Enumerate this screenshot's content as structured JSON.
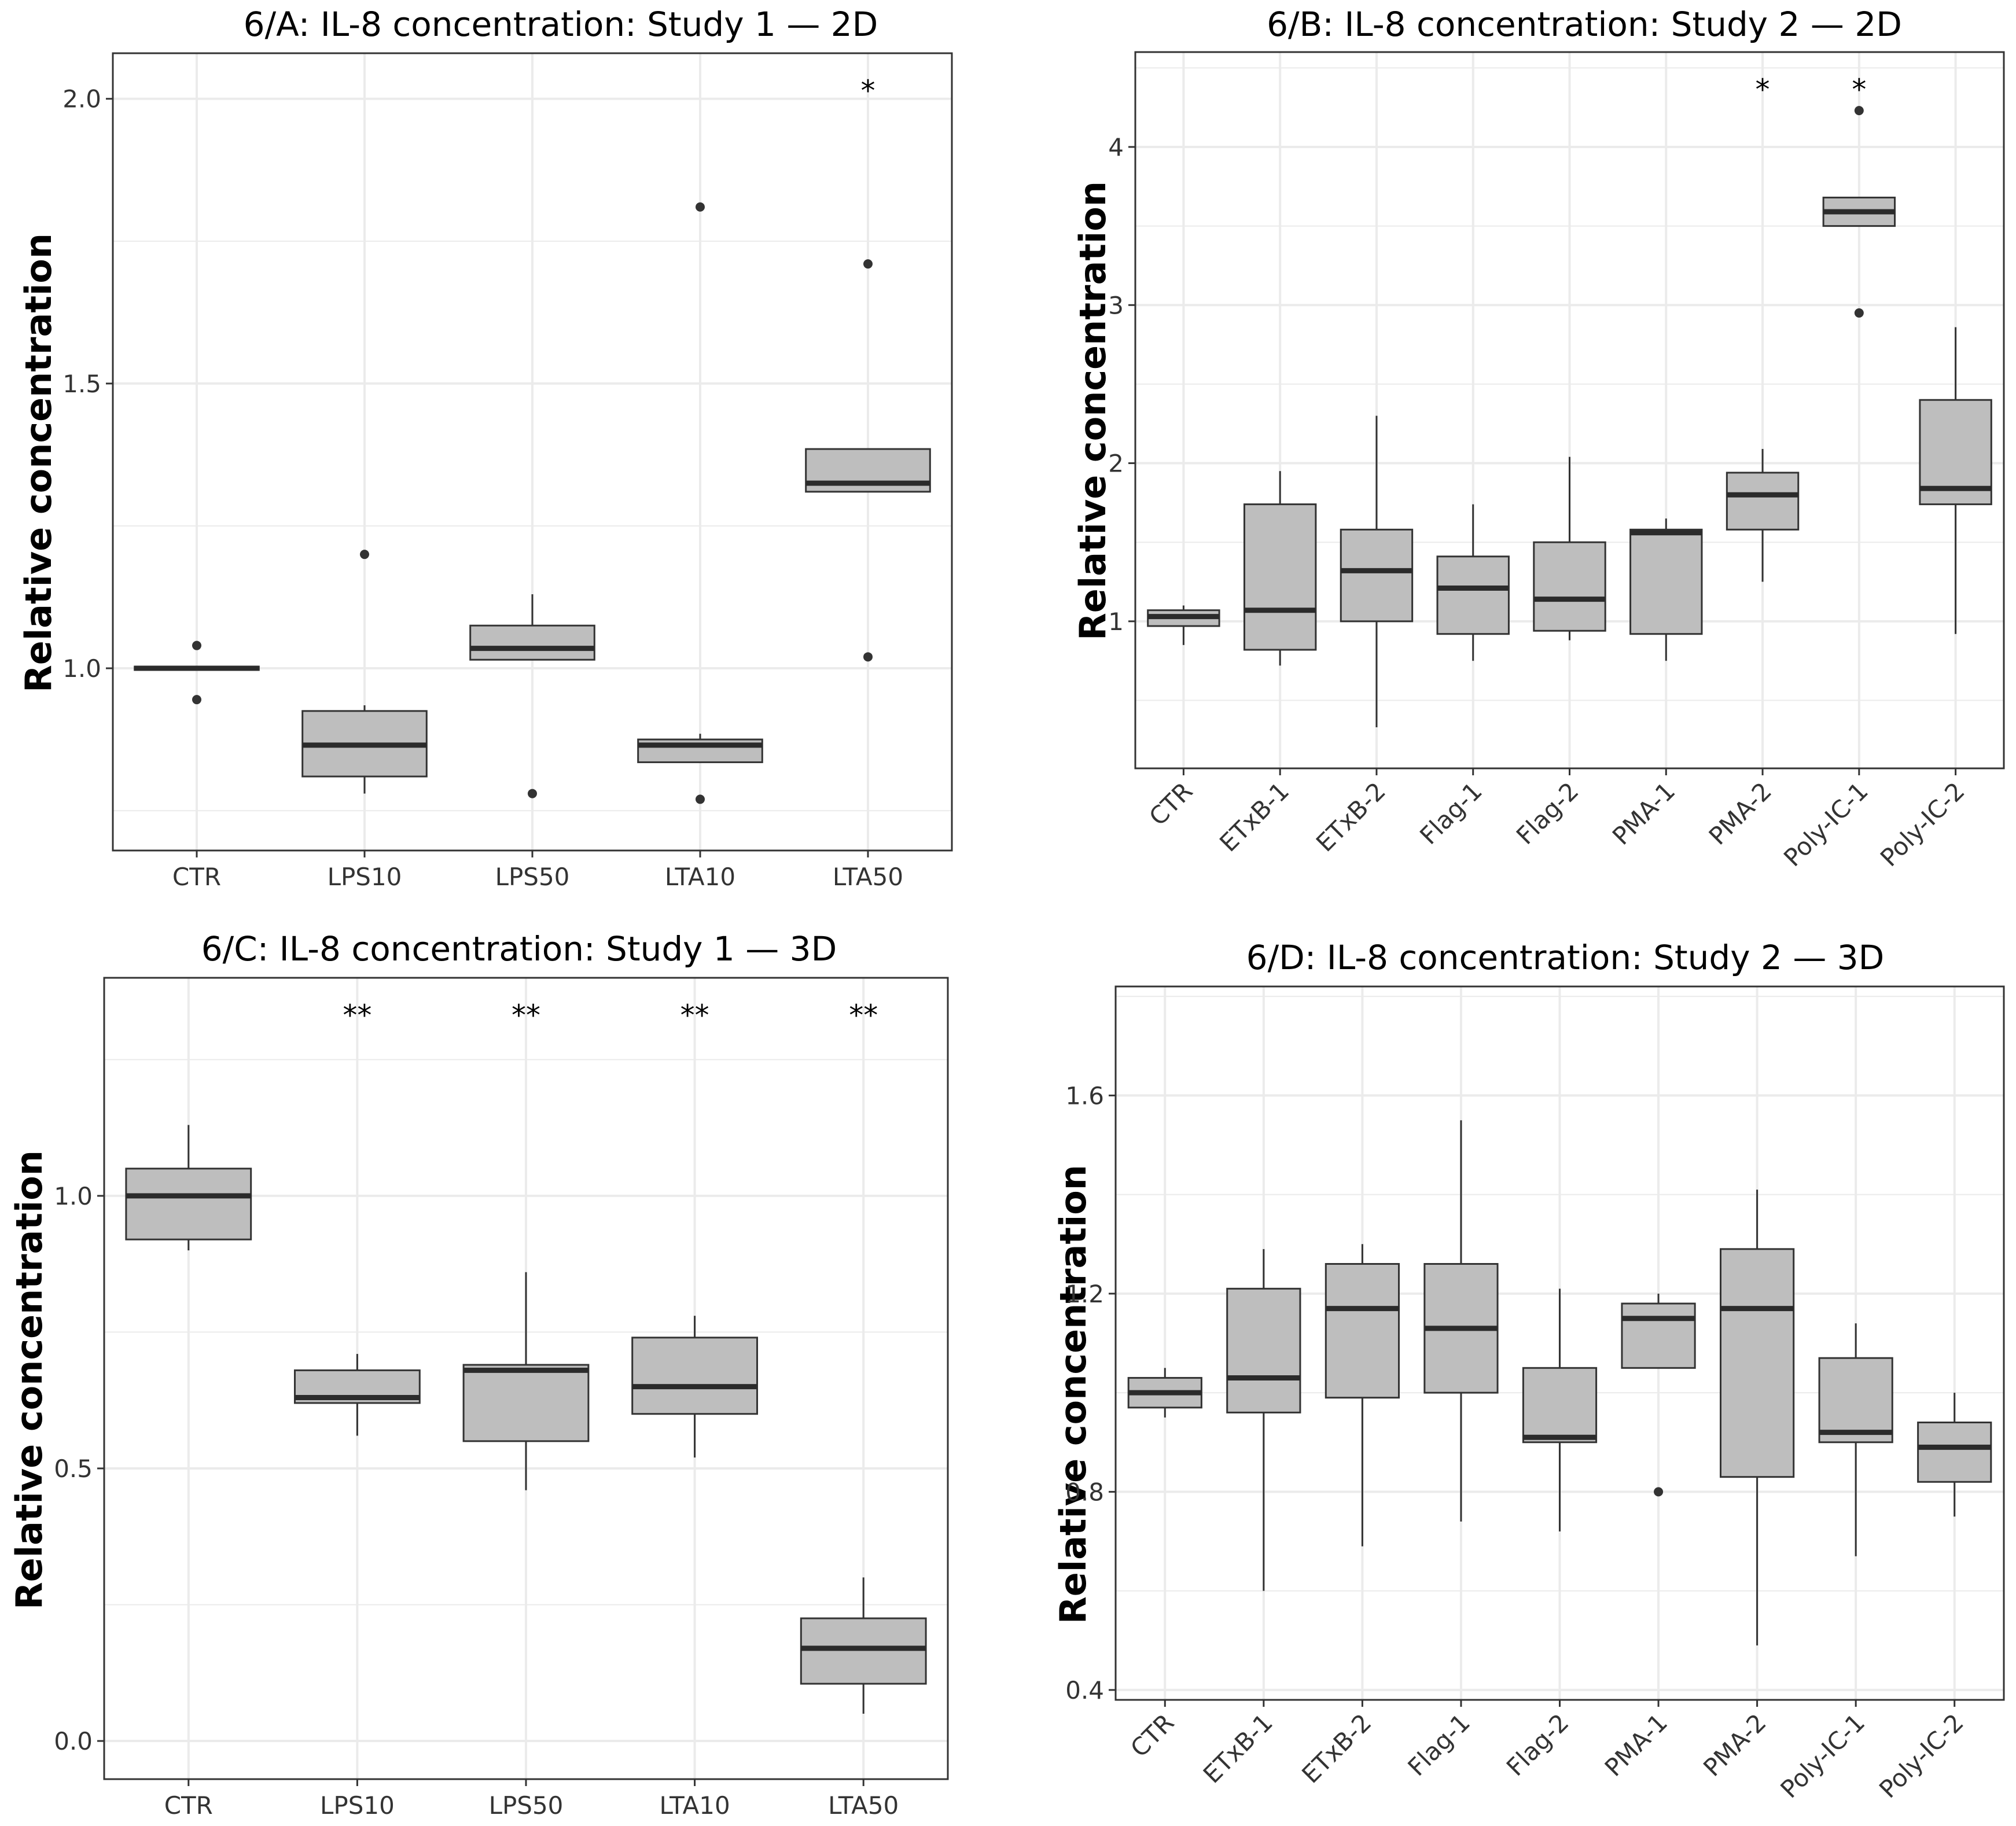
{
  "chart_data": [
    {
      "id": "A",
      "type": "boxplot",
      "title": "6/A: IL-8 concentration: Study 1 — 2D",
      "xlabel": "",
      "ylabel": "Relative concentration",
      "ylim": [
        0.68,
        2.08
      ],
      "yticks": [
        1.0,
        1.5,
        2.0
      ],
      "ytick_labels": [
        "1.0",
        "1.5",
        "2.0"
      ],
      "categories": [
        "CTR",
        "LPS10",
        "LPS50",
        "LTA10",
        "LTA50"
      ],
      "boxes": [
        {
          "lower": 1.0,
          "q1": 0.997,
          "median": 1.0,
          "q3": 1.003,
          "upper": 1.0,
          "outliers": [
            1.04,
            0.945
          ]
        },
        {
          "lower": 0.78,
          "q1": 0.81,
          "median": 0.865,
          "q3": 0.925,
          "upper": 0.935,
          "outliers": [
            1.2
          ]
        },
        {
          "lower": 1.02,
          "q1": 1.015,
          "median": 1.035,
          "q3": 1.075,
          "upper": 1.13,
          "outliers": [
            0.78
          ]
        },
        {
          "lower": 0.835,
          "q1": 0.835,
          "median": 0.865,
          "q3": 0.875,
          "upper": 0.885,
          "outliers": [
            1.81,
            0.77
          ]
        },
        {
          "lower": 1.31,
          "q1": 1.31,
          "median": 1.325,
          "q3": 1.385,
          "upper": 1.385,
          "outliers": [
            1.71,
            1.02
          ]
        }
      ],
      "significance": [
        "",
        "",
        "",
        "",
        "*"
      ]
    },
    {
      "id": "B",
      "type": "boxplot",
      "title": "6/B: IL-8 concentration: Study 2 — 2D",
      "xlabel": "",
      "ylabel": "Relative concentration",
      "ylim": [
        0.07,
        4.6
      ],
      "yticks": [
        1,
        2,
        3,
        4
      ],
      "ytick_labels": [
        "1",
        "2",
        "3",
        "4"
      ],
      "categories": [
        "CTR",
        "ETxB-1",
        "ETxB-2",
        "Flag-1",
        "Flag-2",
        "PMA-1",
        "PMA-2",
        "Poly-IC-1",
        "Poly-IC-2"
      ],
      "boxes": [
        {
          "lower": 0.85,
          "q1": 0.97,
          "median": 1.03,
          "q3": 1.07,
          "upper": 1.1,
          "outliers": []
        },
        {
          "lower": 0.72,
          "q1": 0.82,
          "median": 1.07,
          "q3": 1.74,
          "upper": 1.95,
          "outliers": []
        },
        {
          "lower": 0.33,
          "q1": 1.0,
          "median": 1.32,
          "q3": 1.58,
          "upper": 2.3,
          "outliers": []
        },
        {
          "lower": 0.75,
          "q1": 0.92,
          "median": 1.21,
          "q3": 1.41,
          "upper": 1.74,
          "outliers": []
        },
        {
          "lower": 0.88,
          "q1": 0.94,
          "median": 1.14,
          "q3": 1.5,
          "upper": 2.04,
          "outliers": []
        },
        {
          "lower": 0.75,
          "q1": 0.92,
          "median": 1.56,
          "q3": 1.58,
          "upper": 1.65,
          "outliers": []
        },
        {
          "lower": 1.25,
          "q1": 1.58,
          "median": 1.8,
          "q3": 1.94,
          "upper": 2.09,
          "outliers": []
        },
        {
          "lower": 3.5,
          "q1": 3.5,
          "median": 3.59,
          "q3": 3.68,
          "upper": 3.68,
          "outliers": [
            4.23,
            2.95
          ]
        },
        {
          "lower": 0.92,
          "q1": 1.74,
          "median": 1.84,
          "q3": 2.4,
          "upper": 2.86,
          "outliers": []
        }
      ],
      "significance": [
        "",
        "",
        "",
        "",
        "",
        "",
        "*",
        "*",
        ""
      ]
    },
    {
      "id": "C",
      "type": "boxplot",
      "title": "6/C: IL-8 concentration: Study 1 — 3D",
      "xlabel": "",
      "ylabel": "Relative concentration",
      "ylim": [
        -0.07,
        1.4
      ],
      "yticks": [
        0.0,
        0.5,
        1.0
      ],
      "ytick_labels": [
        "0.0",
        "0.5",
        "1.0"
      ],
      "categories": [
        "CTR",
        "LPS10",
        "LPS50",
        "LTA10",
        "LTA50"
      ],
      "boxes": [
        {
          "lower": 0.9,
          "q1": 0.92,
          "median": 1.0,
          "q3": 1.05,
          "upper": 1.13,
          "outliers": []
        },
        {
          "lower": 0.56,
          "q1": 0.62,
          "median": 0.63,
          "q3": 0.68,
          "upper": 0.71,
          "outliers": []
        },
        {
          "lower": 0.46,
          "q1": 0.55,
          "median": 0.68,
          "q3": 0.69,
          "upper": 0.86,
          "outliers": []
        },
        {
          "lower": 0.52,
          "q1": 0.6,
          "median": 0.65,
          "q3": 0.74,
          "upper": 0.78,
          "outliers": []
        },
        {
          "lower": 0.05,
          "q1": 0.105,
          "median": 0.17,
          "q3": 0.225,
          "upper": 0.3,
          "outliers": []
        }
      ],
      "significance": [
        "",
        "**",
        "**",
        "**",
        "**"
      ]
    },
    {
      "id": "D",
      "type": "boxplot",
      "title": "6/D: IL-8 concentration: Study 2 — 3D",
      "xlabel": "",
      "ylabel": "Relative concentration",
      "ylim": [
        0.38,
        1.82
      ],
      "yticks": [
        0.4,
        0.8,
        1.2,
        1.6
      ],
      "ytick_labels": [
        "0.4",
        "0.8",
        "1.2",
        "1.6"
      ],
      "categories": [
        "CTR",
        "ETxB-1",
        "ETxB-2",
        "Flag-1",
        "Flag-2",
        "PMA-1",
        "PMA-2",
        "Poly-IC-1",
        "Poly-IC-2"
      ],
      "boxes": [
        {
          "lower": 0.95,
          "q1": 0.97,
          "median": 1.0,
          "q3": 1.03,
          "upper": 1.05,
          "outliers": []
        },
        {
          "lower": 0.6,
          "q1": 0.96,
          "median": 1.03,
          "q3": 1.21,
          "upper": 1.29,
          "outliers": []
        },
        {
          "lower": 0.69,
          "q1": 0.99,
          "median": 1.17,
          "q3": 1.26,
          "upper": 1.3,
          "outliers": []
        },
        {
          "lower": 0.74,
          "q1": 1.0,
          "median": 1.13,
          "q3": 1.26,
          "upper": 1.55,
          "outliers": []
        },
        {
          "lower": 0.72,
          "q1": 0.9,
          "median": 0.91,
          "q3": 1.05,
          "upper": 1.21,
          "outliers": []
        },
        {
          "lower": 1.05,
          "q1": 1.05,
          "median": 1.15,
          "q3": 1.18,
          "upper": 1.2,
          "outliers": [
            0.8
          ]
        },
        {
          "lower": 0.49,
          "q1": 0.83,
          "median": 1.17,
          "q3": 1.29,
          "upper": 1.41,
          "outliers": []
        },
        {
          "lower": 0.67,
          "q1": 0.9,
          "median": 0.92,
          "q3": 1.07,
          "upper": 1.14,
          "outliers": []
        },
        {
          "lower": 0.75,
          "q1": 0.82,
          "median": 0.89,
          "q3": 0.94,
          "upper": 1.0,
          "outliers": []
        }
      ],
      "significance": [
        "",
        "",
        "",
        "",
        "",
        "",
        "",
        "",
        ""
      ]
    }
  ],
  "colors": {
    "box_fill": "#bebebe",
    "box_stroke": "#333333",
    "median": "#2b2b2b",
    "grid": "#ebebeb",
    "panel_border": "#333333",
    "text": "#000000",
    "tick_text": "#333333"
  }
}
